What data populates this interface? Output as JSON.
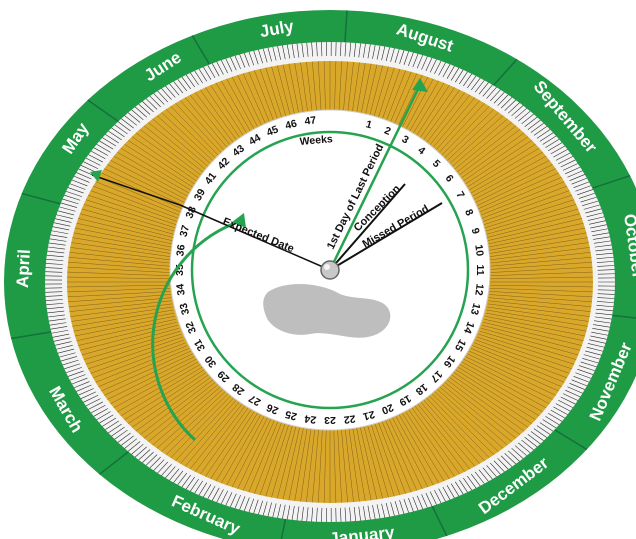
{
  "colors": {
    "outer_ring": "#1f9a45",
    "tick_band": "#d9a72a",
    "tick_line": "#2a2a2a",
    "inner_disc": "#ffffff",
    "accent_green": "#26a350",
    "background": "#ffffff"
  },
  "months": [
    {
      "name": "July",
      "angle": -100
    },
    {
      "name": "August",
      "angle": -72
    },
    {
      "name": "September",
      "angle": -40
    },
    {
      "name": "October",
      "angle": -8
    },
    {
      "name": "November",
      "angle": 23
    },
    {
      "name": "December",
      "angle": 53
    },
    {
      "name": "January",
      "angle": 84
    },
    {
      "name": "February",
      "angle": 114
    },
    {
      "name": "March",
      "angle": 150
    },
    {
      "name": "April",
      "angle": 183
    },
    {
      "name": "May",
      "angle": 214
    },
    {
      "name": "June",
      "angle": 237
    }
  ],
  "weeks": [
    "1",
    "2",
    "3",
    "4",
    "5",
    "6",
    "7",
    "8",
    "9",
    "10",
    "11",
    "12",
    "13",
    "14",
    "15",
    "16",
    "17",
    "18",
    "19",
    "20",
    "21",
    "22",
    "23",
    "24",
    "25",
    "26",
    "27",
    "28",
    "29",
    "30",
    "31",
    "32",
    "33",
    "34",
    "35",
    "36",
    "37",
    "38",
    "39",
    "41",
    "42",
    "43",
    "44",
    "45",
    "46",
    "47"
  ],
  "weeks_label": "Weeks",
  "pointers": {
    "last_period": "1st Day of Last Period",
    "conception": "Conception",
    "missed_period": "Missed Period",
    "expected_date": "Expected Date"
  },
  "icons": {
    "hub": "center-rivet-icon",
    "arrows": "green-arrow-icon"
  }
}
